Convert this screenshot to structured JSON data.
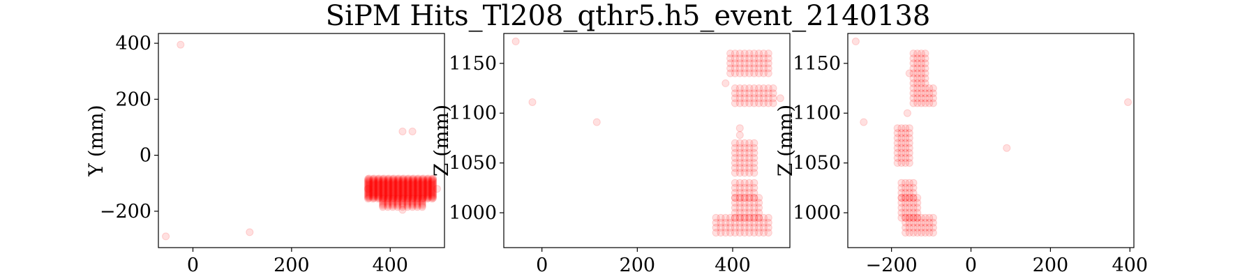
{
  "figure": {
    "title": "SiPM Hits_Tl208_qthr5.h5_event_2140138",
    "point_color": "#ff0000",
    "point_opacity": 0.12
  },
  "chart_data": [
    {
      "type": "scatter",
      "xlabel": "",
      "ylabel": "Y (mm)",
      "xlim": [
        -70,
        510
      ],
      "ylim": [
        -330,
        435
      ],
      "xticks": [
        0,
        200,
        400
      ],
      "xtick_labels": [
        "0",
        "200",
        "400"
      ],
      "yticks": [
        -200,
        0,
        200,
        400
      ],
      "ytick_labels": [
        "−200",
        "0",
        "200",
        "400"
      ],
      "grid": false,
      "clusters": [
        {
          "x_range": [
            355,
            485
          ],
          "y_range": [
            -155,
            -85
          ],
          "step": 10,
          "note_dense_core": true
        },
        {
          "x_range": [
            385,
            465
          ],
          "y_range": [
            -185,
            -155
          ],
          "step": 10
        }
      ],
      "points": [
        [
          -55,
          -290
        ],
        [
          -25,
          395
        ],
        [
          115,
          -275
        ],
        [
          425,
          85
        ],
        [
          445,
          85
        ],
        [
          355,
          -120
        ],
        [
          495,
          -120
        ],
        [
          425,
          -195
        ]
      ]
    },
    {
      "type": "scatter",
      "xlabel": "",
      "ylabel": "Z (mm)",
      "xlim": [
        -80,
        520
      ],
      "ylim": [
        965,
        1180
      ],
      "xticks": [
        0,
        200,
        400
      ],
      "xtick_labels": [
        "0",
        "200",
        "400"
      ],
      "yticks": [
        1000,
        1050,
        1100,
        1150
      ],
      "ytick_labels": [
        "1000",
        "1050",
        "1100",
        "1150"
      ],
      "grid": false,
      "clusters": [
        {
          "x_range": [
            395,
            475
          ],
          "y_range": [
            1140,
            1160
          ],
          "step": 10
        },
        {
          "x_range": [
            405,
            485
          ],
          "y_range": [
            1110,
            1125
          ],
          "step": 10
        },
        {
          "x_range": [
            405,
            445
          ],
          "y_range": [
            1040,
            1070
          ],
          "step": 10
        },
        {
          "x_range": [
            405,
            445
          ],
          "y_range": [
            1015,
            1030
          ],
          "step": 10
        },
        {
          "x_range": [
            405,
            455
          ],
          "y_range": [
            995,
            1015
          ],
          "step": 10
        },
        {
          "x_range": [
            365,
            475
          ],
          "y_range": [
            980,
            995
          ],
          "step": 10
        }
      ],
      "points": [
        [
          -55,
          1172
        ],
        [
          -20,
          1111
        ],
        [
          115,
          1091
        ],
        [
          385,
          1130
        ],
        [
          500,
          1115
        ],
        [
          415,
          1085
        ],
        [
          415,
          1078
        ]
      ]
    },
    {
      "type": "scatter",
      "xlabel": "",
      "ylabel": "Z (mm)",
      "xlim": [
        -310,
        410
      ],
      "ylim": [
        965,
        1180
      ],
      "xticks": [
        -200,
        0,
        200,
        400
      ],
      "xtick_labels": [
        "−200",
        "0",
        "200",
        "400"
      ],
      "yticks": [
        1000,
        1050,
        1100,
        1150
      ],
      "ytick_labels": [
        "1000",
        "1050",
        "1100",
        "1150"
      ],
      "grid": false,
      "clusters": [
        {
          "x_range": [
            -145,
            -115
          ],
          "y_range": [
            1130,
            1160
          ],
          "step": 10
        },
        {
          "x_range": [
            -145,
            -95
          ],
          "y_range": [
            1110,
            1125
          ],
          "step": 10
        },
        {
          "x_range": [
            -185,
            -155
          ],
          "y_range": [
            1050,
            1085
          ],
          "step": 10
        },
        {
          "x_range": [
            -175,
            -145
          ],
          "y_range": [
            1015,
            1030
          ],
          "step": 10
        },
        {
          "x_range": [
            -175,
            -135
          ],
          "y_range": [
            995,
            1015
          ],
          "step": 10
        },
        {
          "x_range": [
            -165,
            -95
          ],
          "y_range": [
            980,
            995
          ],
          "step": 10
        }
      ],
      "points": [
        [
          -290,
          1172
        ],
        [
          -270,
          1091
        ],
        [
          90,
          1065
        ],
        [
          395,
          1111
        ],
        [
          -155,
          1140
        ],
        [
          -160,
          1100
        ]
      ]
    }
  ]
}
